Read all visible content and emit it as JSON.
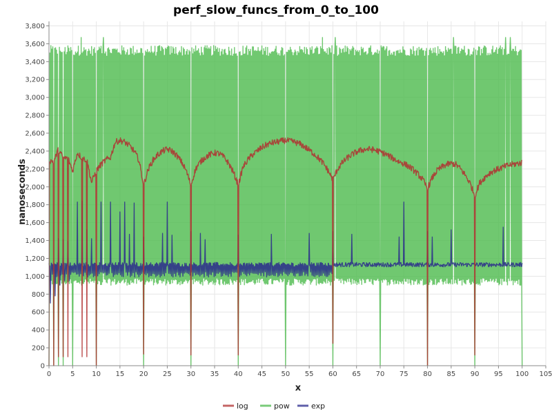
{
  "chart_data": {
    "type": "line",
    "title": "perf_slow_funcs_from_0_to_100",
    "xlabel": "x",
    "ylabel": "nanoseconds",
    "xlim": [
      0,
      105
    ],
    "ylim": [
      0,
      3850
    ],
    "x_ticks": [
      "0",
      "5",
      "10",
      "15",
      "20",
      "25",
      "30",
      "35",
      "40",
      "45",
      "50",
      "55",
      "60",
      "65",
      "70",
      "75",
      "80",
      "85",
      "90",
      "95",
      "100",
      "105"
    ],
    "y_ticks": [
      "0",
      "200",
      "400",
      "600",
      "800",
      "1,000",
      "1,200",
      "1,400",
      "1,600",
      "1,800",
      "2,000",
      "2,200",
      "2,400",
      "2,600",
      "2,800",
      "3,000",
      "3,200",
      "3,400",
      "3,600",
      "3,800"
    ],
    "grid": true,
    "legend_position": "bottom",
    "series": [
      {
        "name": "log",
        "color": "#b03030",
        "baseline": [
          [
            0,
            2300
          ],
          [
            1,
            2280
          ],
          [
            2,
            2420
          ],
          [
            3,
            2320
          ],
          [
            4,
            2320
          ],
          [
            5,
            2180
          ],
          [
            6,
            2380
          ],
          [
            7,
            2320
          ],
          [
            8,
            2300
          ],
          [
            9,
            2050
          ],
          [
            10,
            2180
          ],
          [
            11,
            2250
          ],
          [
            12,
            2300
          ],
          [
            13,
            2330
          ],
          [
            14,
            2500
          ],
          [
            15,
            2520
          ],
          [
            16,
            2500
          ],
          [
            17,
            2460
          ],
          [
            18,
            2400
          ],
          [
            19,
            2300
          ],
          [
            20,
            2020
          ],
          [
            21,
            2200
          ],
          [
            22,
            2300
          ],
          [
            23,
            2360
          ],
          [
            24,
            2400
          ],
          [
            25,
            2420
          ],
          [
            26,
            2400
          ],
          [
            27,
            2350
          ],
          [
            28,
            2280
          ],
          [
            29,
            2180
          ],
          [
            30,
            2020
          ],
          [
            31,
            2200
          ],
          [
            32,
            2280
          ],
          [
            33,
            2330
          ],
          [
            34,
            2360
          ],
          [
            35,
            2380
          ],
          [
            36,
            2370
          ],
          [
            37,
            2330
          ],
          [
            38,
            2260
          ],
          [
            39,
            2160
          ],
          [
            40,
            2020
          ],
          [
            41,
            2220
          ],
          [
            42,
            2300
          ],
          [
            43,
            2360
          ],
          [
            44,
            2400
          ],
          [
            45,
            2440
          ],
          [
            46,
            2470
          ],
          [
            47,
            2490
          ],
          [
            48,
            2500
          ],
          [
            49,
            2510
          ],
          [
            50,
            2520
          ],
          [
            51,
            2510
          ],
          [
            52,
            2500
          ],
          [
            53,
            2480
          ],
          [
            54,
            2450
          ],
          [
            55,
            2410
          ],
          [
            56,
            2370
          ],
          [
            57,
            2320
          ],
          [
            58,
            2260
          ],
          [
            59,
            2180
          ],
          [
            60,
            2080
          ],
          [
            61,
            2200
          ],
          [
            62,
            2270
          ],
          [
            63,
            2320
          ],
          [
            64,
            2360
          ],
          [
            65,
            2390
          ],
          [
            66,
            2410
          ],
          [
            67,
            2420
          ],
          [
            68,
            2420
          ],
          [
            69,
            2410
          ],
          [
            70,
            2390
          ],
          [
            71,
            2370
          ],
          [
            72,
            2340
          ],
          [
            73,
            2310
          ],
          [
            74,
            2280
          ],
          [
            75,
            2260
          ],
          [
            76,
            2230
          ],
          [
            77,
            2190
          ],
          [
            78,
            2140
          ],
          [
            79,
            2080
          ],
          [
            80,
            1980
          ],
          [
            81,
            2100
          ],
          [
            82,
            2180
          ],
          [
            83,
            2220
          ],
          [
            84,
            2250
          ],
          [
            85,
            2260
          ],
          [
            86,
            2250
          ],
          [
            87,
            2200
          ],
          [
            88,
            2130
          ],
          [
            89,
            2040
          ],
          [
            90,
            1900
          ],
          [
            91,
            2040
          ],
          [
            92,
            2100
          ],
          [
            93,
            2150
          ],
          [
            94,
            2180
          ],
          [
            95,
            2200
          ],
          [
            96,
            2220
          ],
          [
            97,
            2240
          ],
          [
            98,
            2250
          ],
          [
            99,
            2260
          ],
          [
            100,
            2270
          ]
        ],
        "dips": [
          [
            0,
            0
          ],
          [
            1,
            0
          ],
          [
            2,
            100
          ],
          [
            3,
            100
          ],
          [
            4,
            100
          ],
          [
            7,
            100
          ],
          [
            8,
            100
          ],
          [
            10,
            0
          ],
          [
            20,
            130
          ],
          [
            30,
            120
          ],
          [
            40,
            120
          ],
          [
            60,
            250
          ],
          [
            80,
            0
          ],
          [
            90,
            120
          ]
        ]
      },
      {
        "name": "pow",
        "color": "#4cba4c",
        "baseline_value": 3520,
        "spike_max": 3670,
        "spike_xs": [
          6.8,
          11.5,
          57.8,
          60.5,
          85.5,
          96.5,
          97.5
        ],
        "low_floor": 900,
        "zero_xs": [
          0,
          1,
          2,
          3,
          5,
          10,
          20,
          30,
          40,
          50,
          60,
          70,
          80,
          90,
          100
        ]
      },
      {
        "name": "exp",
        "color": "#2a2a8c",
        "baseline_value": 1130,
        "low_floor": 990,
        "early_lows": [
          [
            0,
            700
          ],
          [
            1,
            780
          ],
          [
            2,
            900
          ],
          [
            3,
            950
          ],
          [
            4,
            950
          ]
        ],
        "spikes": [
          [
            2,
            1420
          ],
          [
            3,
            1410
          ],
          [
            4,
            1390
          ],
          [
            6,
            1830
          ],
          [
            7,
            1840
          ],
          [
            8,
            1520
          ],
          [
            9,
            1420
          ],
          [
            11,
            1830
          ],
          [
            13,
            1830
          ],
          [
            15,
            1720
          ],
          [
            16,
            1830
          ],
          [
            17,
            1470
          ],
          [
            18,
            1820
          ],
          [
            20,
            1440
          ],
          [
            24,
            1480
          ],
          [
            25,
            1830
          ],
          [
            26,
            1460
          ],
          [
            30,
            1500
          ],
          [
            32,
            1480
          ],
          [
            33,
            1410
          ],
          [
            40,
            1460
          ],
          [
            47,
            1470
          ],
          [
            55,
            1480
          ],
          [
            60,
            1500
          ],
          [
            64,
            1470
          ],
          [
            74,
            1440
          ],
          [
            75,
            1830
          ],
          [
            80,
            1500
          ],
          [
            81,
            1440
          ],
          [
            85,
            1520
          ],
          [
            96,
            1550
          ]
        ]
      }
    ]
  }
}
